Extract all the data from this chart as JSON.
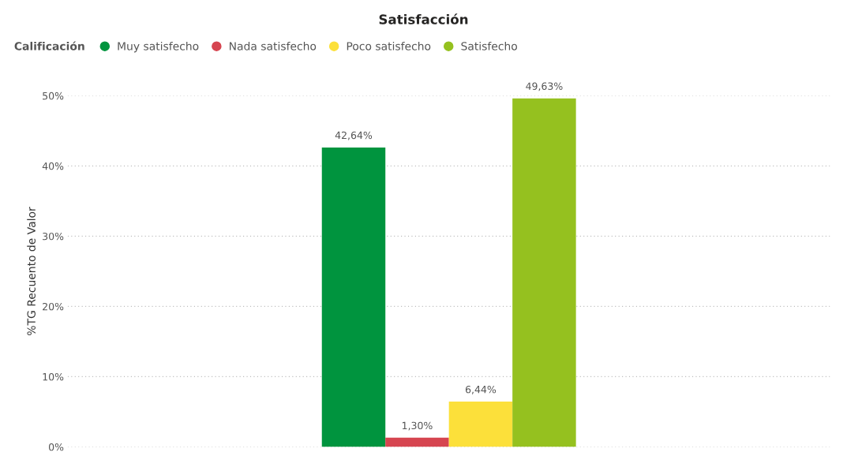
{
  "chart_data": {
    "type": "bar",
    "title": "Satisfacción",
    "ylabel": "%TG Recuento de Valor",
    "legend_title": "Calificación",
    "legend": "top left",
    "grid": "y",
    "categories": [
      null
    ],
    "series": [
      {
        "name": "Muy satisfecho",
        "color": "#00943e",
        "values": [
          42.64
        ],
        "value_labels": [
          "42,64%"
        ]
      },
      {
        "name": "Nada satisfecho",
        "color": "#d64550",
        "values": [
          1.3
        ],
        "value_labels": [
          "1,30%"
        ]
      },
      {
        "name": "Poco satisfecho",
        "color": "#fce03a",
        "values": [
          6.44
        ],
        "value_labels": [
          "6,44%"
        ]
      },
      {
        "name": "Satisfecho",
        "color": "#95c11f",
        "values": [
          49.63
        ],
        "value_labels": [
          "49,63%"
        ]
      }
    ],
    "ylim": [
      0,
      50
    ],
    "yticks": [
      {
        "value": 0,
        "label": "0%"
      },
      {
        "value": 10,
        "label": "10%"
      },
      {
        "value": 20,
        "label": "20%"
      },
      {
        "value": 30,
        "label": "30%"
      },
      {
        "value": 40,
        "label": "40%"
      },
      {
        "value": 50,
        "label": "50%"
      }
    ]
  }
}
